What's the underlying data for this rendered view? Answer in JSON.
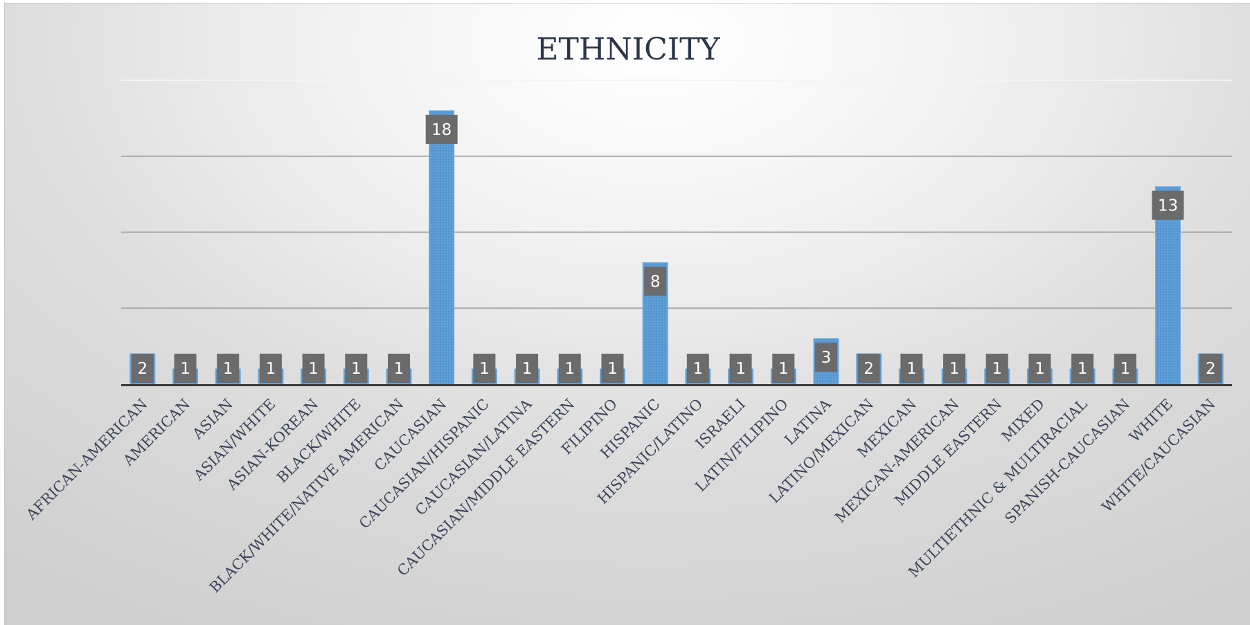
{
  "chart_data": {
    "type": "bar",
    "title": "ETHNICITY",
    "categories": [
      "AFRICAN-AMERICAN",
      "AMERICAN",
      "ASIAN",
      "ASIAN/WHITE",
      "ASIAN-KOREAN",
      "BLACK/WHITE",
      "BLACK/WHITE/NATIVE AMERICAN",
      "CAUCASIAN",
      "CAUCASIAN/HISPANIC",
      "CAUCASIAN/LATINA",
      "CAUCASIAN/MIDDLE EASTERN",
      "FILIPINO",
      "HISPANIC",
      "HISPANIC/LATINO",
      "ISRAELI",
      "LATIN/FILIPINO",
      "LATINA",
      "LATINO/MEXICAN",
      "MEXICAN",
      "MEXICAN-AMERICAN",
      "MIDDLE EASTERN",
      "MIXED",
      "MULTIETHNIC & MULTIRACIAL",
      "SPANISH-CAUCASIAN",
      "WHITE",
      "WHITE/CAUCASIAN"
    ],
    "values": [
      2,
      1,
      1,
      1,
      1,
      1,
      1,
      18,
      1,
      1,
      1,
      1,
      8,
      1,
      1,
      1,
      3,
      2,
      1,
      1,
      1,
      1,
      1,
      1,
      13,
      2
    ],
    "xlabel": "",
    "ylabel": "",
    "ylim": [
      0,
      20
    ],
    "grid": true,
    "legend": "none",
    "bar_color": "#5b9bd5",
    "data_label_color": "#6b6b6b"
  }
}
